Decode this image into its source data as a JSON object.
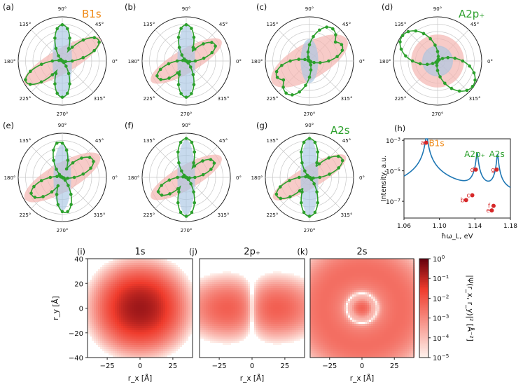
{
  "chart_data": [
    {
      "type": "polar",
      "panel_label": "(a)",
      "title": "B1s",
      "title_color": "#ef8a17",
      "angle_ticks": [
        "0°",
        "45°",
        "90°",
        "135°",
        "180°",
        "225°",
        "270°",
        "315°"
      ],
      "ellipses": [
        {
          "color": "#f4b5b0",
          "angle_deg": 30,
          "semi_major": 1.0,
          "semi_minor": 0.28
        },
        {
          "color": "#a9c6e3",
          "angle_deg": 90,
          "semi_major": 0.82,
          "semi_minor": 0.22
        }
      ],
      "series": [
        {
          "color": "#2ca02c",
          "lobes": [
            {
              "angle_deg": 90,
              "length": 0.82,
              "width": 0.11
            },
            {
              "angle_deg": 30,
              "length": 0.95,
              "width": 0.09
            }
          ]
        }
      ]
    },
    {
      "type": "polar",
      "panel_label": "(b)",
      "title": "",
      "angle_ticks": [
        "0°",
        "45°",
        "90°",
        "135°",
        "180°",
        "225°",
        "270°",
        "315°"
      ],
      "ellipses": [
        {
          "color": "#f4b5b0",
          "angle_deg": 30,
          "semi_major": 0.92,
          "semi_minor": 0.27
        },
        {
          "color": "#a9c6e3",
          "angle_deg": 90,
          "semi_major": 0.82,
          "semi_minor": 0.2
        }
      ],
      "series": [
        {
          "color": "#2ca02c",
          "lobes": [
            {
              "angle_deg": 90,
              "length": 0.82,
              "width": 0.12
            },
            {
              "angle_deg": 30,
              "length": 0.75,
              "width": 0.1
            }
          ]
        }
      ]
    },
    {
      "type": "polar",
      "panel_label": "(c)",
      "title": "",
      "angle_ticks": [
        "0°",
        "45°",
        "90°",
        "135°",
        "180°",
        "225°",
        "270°",
        "315°"
      ],
      "ellipses": [
        {
          "color": "#f4b5b0",
          "angle_deg": 30,
          "semi_major": 0.98,
          "semi_minor": 0.4
        },
        {
          "color": "#a9c6e3",
          "angle_deg": 90,
          "semi_major": 0.5,
          "semi_minor": 0.2
        }
      ],
      "series": [
        {
          "color": "#2ca02c",
          "lobes": [
            {
              "angle_deg": 55,
              "length": 0.9,
              "width": 0.2
            },
            {
              "angle_deg": 25,
              "length": 0.82,
              "width": 0.14
            }
          ]
        }
      ]
    },
    {
      "type": "polar",
      "panel_label": "(d)",
      "title": "A2p₊",
      "title_color": "#2ca02c",
      "angle_ticks": [
        "0°",
        "45°",
        "90°",
        "135°",
        "180°",
        "225°",
        "270°",
        "315°"
      ],
      "ellipses": [
        {
          "color": "#f4b5b0",
          "angle_deg": 0,
          "semi_major": 0.6,
          "semi_minor": 0.6
        },
        {
          "color": "#a9c6e3",
          "angle_deg": 0,
          "semi_major": 0.35,
          "semi_minor": 0.35
        }
      ],
      "series": [
        {
          "color": "#2ca02c",
          "lobes": [
            {
              "angle_deg": 145,
              "length": 0.98,
              "width": 0.33
            }
          ]
        }
      ]
    },
    {
      "type": "polar",
      "panel_label": "(e)",
      "title": "",
      "angle_ticks": [
        "0°",
        "45°",
        "90°",
        "135°",
        "180°",
        "225°",
        "270°",
        "315°"
      ],
      "ellipses": [
        {
          "color": "#f4b5b0",
          "angle_deg": 30,
          "semi_major": 0.98,
          "semi_minor": 0.32
        },
        {
          "color": "#a9c6e3",
          "angle_deg": 90,
          "semi_major": 0.75,
          "semi_minor": 0.2
        }
      ],
      "series": [
        {
          "color": "#2ca02c",
          "lobes": [
            {
              "angle_deg": 95,
              "length": 0.8,
              "width": 0.11
            },
            {
              "angle_deg": 30,
              "length": 0.8,
              "width": 0.12
            }
          ]
        }
      ]
    },
    {
      "type": "polar",
      "panel_label": "(f)",
      "title": "",
      "angle_ticks": [
        "0°",
        "45°",
        "90°",
        "135°",
        "180°",
        "225°",
        "270°",
        "315°"
      ],
      "ellipses": [
        {
          "color": "#f4b5b0",
          "angle_deg": 30,
          "semi_major": 0.92,
          "semi_minor": 0.27
        },
        {
          "color": "#a9c6e3",
          "angle_deg": 90,
          "semi_major": 0.85,
          "semi_minor": 0.2
        }
      ],
      "series": [
        {
          "color": "#2ca02c",
          "lobes": [
            {
              "angle_deg": 90,
              "length": 0.88,
              "width": 0.12
            },
            {
              "angle_deg": 30,
              "length": 0.72,
              "width": 0.1
            }
          ]
        }
      ]
    },
    {
      "type": "polar",
      "panel_label": "(g)",
      "title": "A2s",
      "title_color": "#2ca02c",
      "angle_ticks": [
        "0°",
        "45°",
        "90°",
        "135°",
        "180°",
        "225°",
        "270°",
        "315°"
      ],
      "ellipses": [
        {
          "color": "#f4b5b0",
          "angle_deg": 30,
          "semi_major": 0.95,
          "semi_minor": 0.25
        },
        {
          "color": "#a9c6e3",
          "angle_deg": 90,
          "semi_major": 0.88,
          "semi_minor": 0.2
        }
      ],
      "series": [
        {
          "color": "#2ca02c",
          "lobes": [
            {
              "angle_deg": 90,
              "length": 0.88,
              "width": 0.12
            },
            {
              "angle_deg": 30,
              "length": 0.85,
              "width": 0.1
            }
          ]
        }
      ]
    },
    {
      "type": "line",
      "panel_label": "(h)",
      "xlabel": "ħω_L, eV",
      "ylabel": "Intensity, a.u.",
      "xlim": [
        1.06,
        1.18
      ],
      "ylim_log10": [
        -8.1,
        -2.9
      ],
      "yscale": "log",
      "xticks": [
        "1.06",
        "1.10",
        "1.14",
        "1.18"
      ],
      "yticks": [
        {
          "exp": -3,
          "label": "10",
          "sup": "−3"
        },
        {
          "exp": -5,
          "label": "10",
          "sup": "−5"
        },
        {
          "exp": -7,
          "label": "10",
          "sup": "−7"
        }
      ],
      "line_color": "#1f77b4",
      "resonances": [
        {
          "x0": 1.0855,
          "gamma": 0.0012,
          "amp": 0.002
        },
        {
          "x0": 1.1425,
          "gamma": 0.0009,
          "amp": 0.00015
        },
        {
          "x0": 1.1655,
          "gamma": 0.0008,
          "amp": 0.00012
        }
      ],
      "background": 1e-07,
      "points": [
        {
          "label": "a",
          "x": 1.085,
          "y": 0.0007
        },
        {
          "label": "b",
          "x": 1.13,
          "y": 1.2e-07
        },
        {
          "label": "c",
          "x": 1.137,
          "y": 2.5e-07
        },
        {
          "label": "d",
          "x": 1.141,
          "y": 1.2e-05
        },
        {
          "label": "e",
          "x": 1.159,
          "y": 2.5e-08
        },
        {
          "label": "f",
          "x": 1.161,
          "y": 5e-08
        },
        {
          "label": "g",
          "x": 1.1645,
          "y": 1.2e-05
        }
      ],
      "annotations": [
        {
          "text": "B1s",
          "color": "#ef8a17"
        },
        {
          "text": "A2p₊",
          "color": "#2ca02c"
        },
        {
          "text": "A2s",
          "color": "#2ca02c"
        }
      ]
    },
    {
      "type": "heatmap",
      "panel_label": "(i)",
      "title": "1s",
      "xlabel": "r_x [Å]",
      "ylabel": "r_y [Å]",
      "xlim": [
        -40,
        40
      ],
      "ylim": [
        -40,
        40
      ],
      "xticks": [
        "−25",
        "0",
        "25"
      ],
      "yticks": [
        "40",
        "20",
        "0",
        "−20",
        "−40"
      ],
      "peak_log10": -0.6,
      "blobs": [
        {
          "cx": 0,
          "cy": 0,
          "sx": 10,
          "sy": 10,
          "kind": "gauss"
        }
      ]
    },
    {
      "type": "heatmap",
      "panel_label": "(j)",
      "title": "2p₊",
      "xlabel": "r_x [Å]",
      "ylabel": "",
      "xlim": [
        -40,
        40
      ],
      "ylim": [
        -40,
        40
      ],
      "xticks": [
        "−25",
        "0",
        "25"
      ],
      "peak_log10": -2.0,
      "blobs": [
        {
          "cx": 0,
          "cy": 0,
          "sx": 18,
          "sy": 11,
          "kind": "p"
        }
      ]
    },
    {
      "type": "heatmap",
      "panel_label": "(k)",
      "title": "2s",
      "xlabel": "r_x [Å]",
      "ylabel": "",
      "xlim": [
        -40,
        40
      ],
      "ylim": [
        -40,
        40
      ],
      "xticks": [
        "−25",
        "0",
        "25"
      ],
      "peak_log10": -2.2,
      "blobs": [
        {
          "cx": 0,
          "cy": 0,
          "sx": 0,
          "sy": 0,
          "kind": "s2"
        }
      ]
    },
    {
      "type": "colorbar",
      "label": "|Ψ(r_x, r_y)|² [Å⁻²]",
      "ticks": [
        {
          "exp": 0,
          "label": "10",
          "sup": "0"
        },
        {
          "exp": -1,
          "label": "10",
          "sup": "−1"
        },
        {
          "exp": -2,
          "label": "10",
          "sup": "−2"
        },
        {
          "exp": -3,
          "label": "10",
          "sup": "−3"
        },
        {
          "exp": -4,
          "label": "10",
          "sup": "−4"
        },
        {
          "exp": -5,
          "label": "10",
          "sup": "−5"
        }
      ],
      "range_log10": [
        -5,
        0
      ],
      "color_low": "#fff5f0",
      "color_high": "#67000d"
    }
  ]
}
